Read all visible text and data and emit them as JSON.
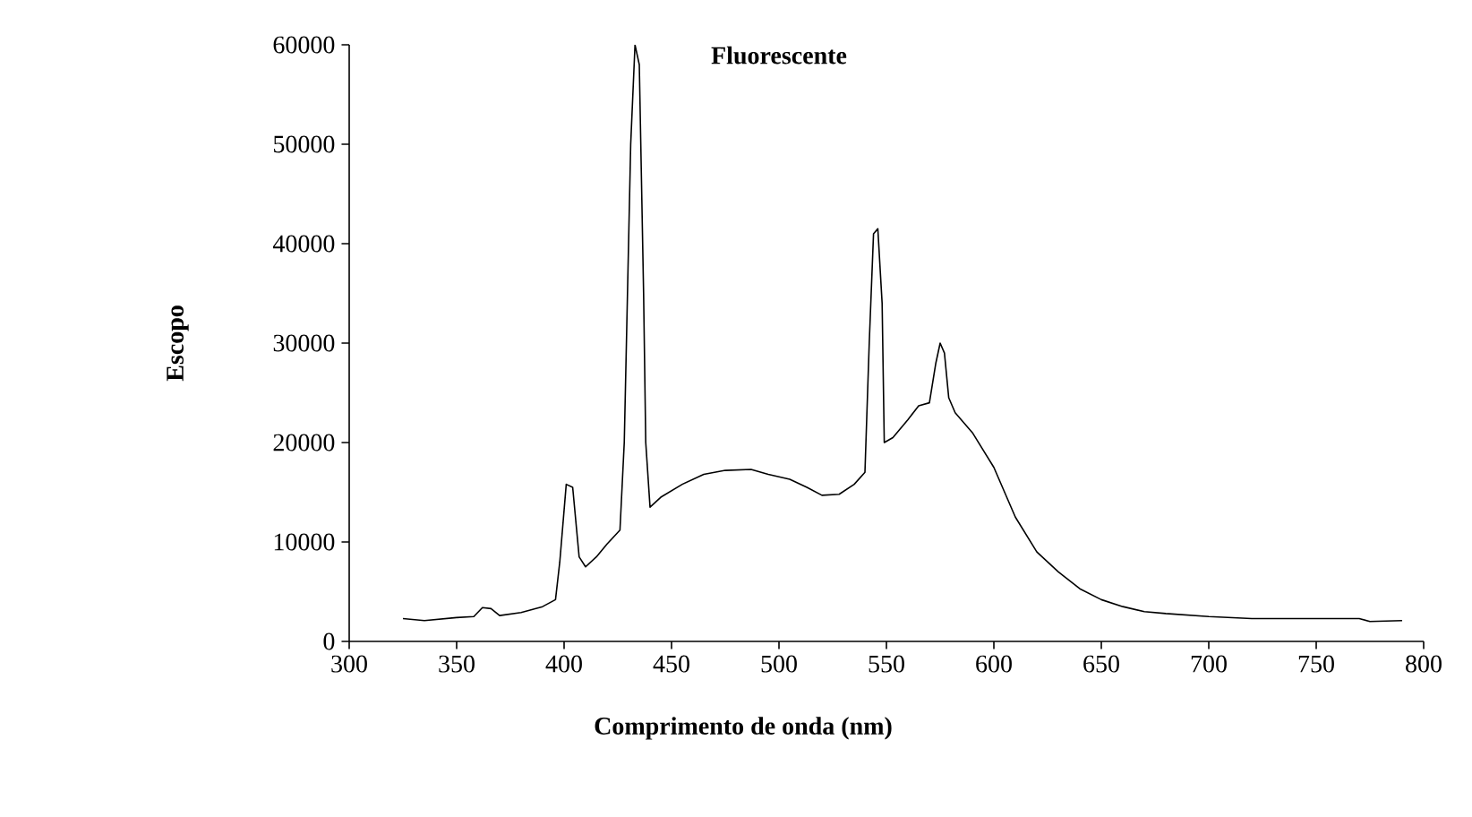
{
  "chart_data": {
    "type": "line",
    "title": "Fluorescente",
    "xlabel": "Comprimento de onda (nm)",
    "ylabel": "Escopo",
    "xlim": [
      300,
      800
    ],
    "xticks": [
      300,
      350,
      400,
      450,
      500,
      550,
      600,
      650,
      700,
      750,
      800
    ],
    "ylim": [
      0,
      60000
    ],
    "yticks": [
      0,
      10000,
      20000,
      30000,
      40000,
      50000,
      60000
    ],
    "marker": "none",
    "line_style": "solid",
    "series": [
      {
        "color": "#000000",
        "x": [
          325,
          335,
          350,
          358,
          362,
          366,
          370,
          380,
          390,
          396,
          398,
          401,
          404,
          407,
          410,
          415,
          420,
          426,
          428,
          431,
          433,
          435,
          437,
          438,
          440,
          445,
          455,
          465,
          475,
          487,
          495,
          505,
          513,
          520,
          528,
          535,
          540,
          542,
          544,
          546,
          548,
          549,
          553,
          560,
          565,
          570,
          573,
          575,
          577,
          579,
          582,
          590,
          600,
          610,
          620,
          630,
          640,
          650,
          660,
          670,
          680,
          700,
          720,
          750,
          770,
          775,
          790
        ],
        "values": [
          2300,
          2100,
          2400,
          2500,
          3400,
          3300,
          2600,
          2900,
          3500,
          4200,
          8000,
          15800,
          15500,
          8500,
          7500,
          8500,
          9800,
          11200,
          20000,
          50000,
          60000,
          58000,
          35000,
          20000,
          13500,
          14500,
          15800,
          16800,
          17200,
          17300,
          16800,
          16300,
          15500,
          14700,
          14800,
          15800,
          17000,
          30000,
          41000,
          41500,
          34000,
          20000,
          20500,
          22300,
          23700,
          24000,
          28000,
          30000,
          29000,
          24500,
          23000,
          21000,
          17500,
          12500,
          9000,
          7000,
          5300,
          4200,
          3500,
          3000,
          2800,
          2500,
          2300,
          2300,
          2300,
          2000,
          2100
        ]
      }
    ]
  }
}
